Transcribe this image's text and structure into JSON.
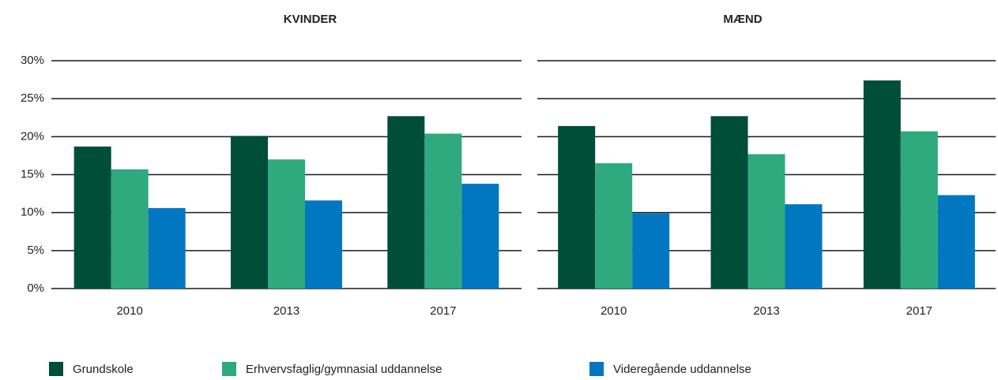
{
  "chart_data": [
    {
      "type": "bar",
      "title": "KVINDER",
      "categories": [
        "2010",
        "2013",
        "2017"
      ],
      "series": [
        {
          "name": "Grundskole",
          "color": "#004d38",
          "values": [
            18.7,
            20.1,
            22.7
          ]
        },
        {
          "name": "Erhvervsfaglig/gymnasial uddannelse",
          "color": "#2eaa7e",
          "values": [
            15.7,
            17.0,
            20.4
          ]
        },
        {
          "name": "Videregående uddannelse",
          "color": "#0077c0",
          "values": [
            10.6,
            11.6,
            13.8
          ]
        }
      ],
      "ylim": [
        0,
        30
      ],
      "yticks": [
        {
          "value": 0,
          "label": "0%"
        },
        {
          "value": 5,
          "label": "5%"
        },
        {
          "value": 10,
          "label": "10%"
        },
        {
          "value": 15,
          "label": "15%"
        },
        {
          "value": 20,
          "label": "20%"
        },
        {
          "value": 25,
          "label": "25%"
        },
        {
          "value": 30,
          "label": "30%"
        }
      ],
      "grid": true
    },
    {
      "type": "bar",
      "title": "MÆND",
      "categories": [
        "2010",
        "2013",
        "2017"
      ],
      "series": [
        {
          "color": "#004d38",
          "values": [
            21.4,
            22.7,
            27.4
          ]
        },
        {
          "color": "#2eaa7e",
          "values": [
            16.5,
            17.7,
            20.7
          ]
        },
        {
          "color": "#0077c0",
          "values": [
            9.9,
            11.1,
            12.3
          ]
        }
      ],
      "ylim": [
        0,
        30
      ],
      "yticks": [
        0,
        5,
        10,
        15,
        20,
        25,
        30
      ],
      "grid": true
    }
  ]
}
